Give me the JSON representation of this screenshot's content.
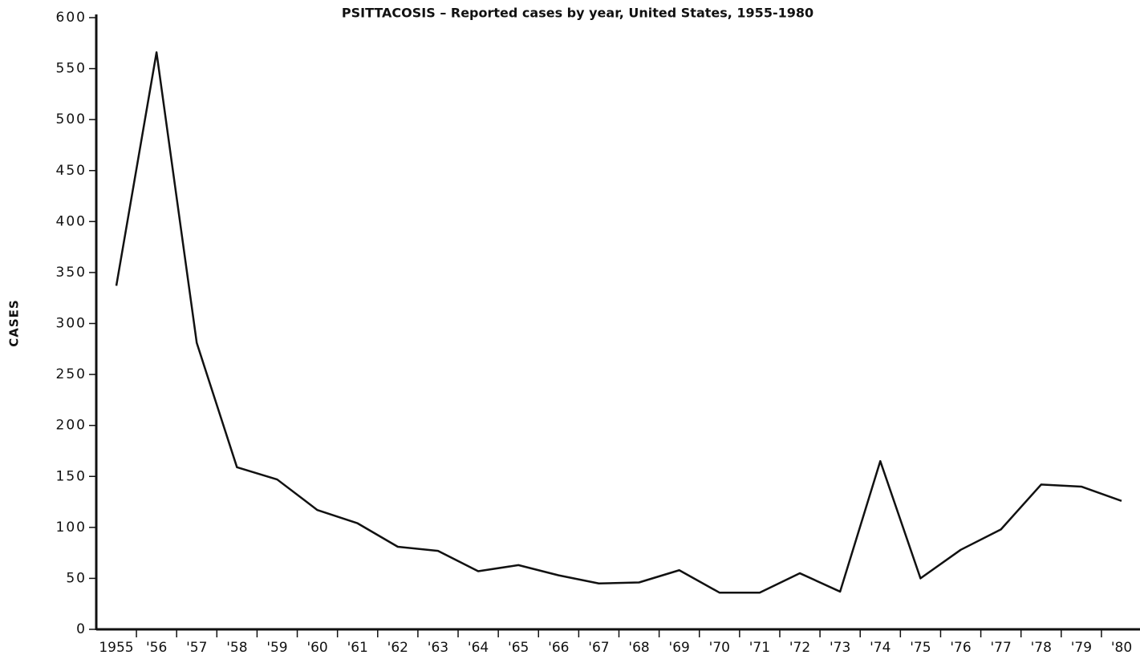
{
  "chart_data": {
    "type": "line",
    "title": "PSITTACOSIS – Reported cases by year, United States, 1955-1980",
    "y_label": "CASES",
    "categories": [
      "1955",
      "'56",
      "'57",
      "'58",
      "'59",
      "'60",
      "'61",
      "'62",
      "'63",
      "'64",
      "'65",
      "'66",
      "'67",
      "'68",
      "'69",
      "'70",
      "'71",
      "'72",
      "'73",
      "'74",
      "'75",
      "'76",
      "'77",
      "'78",
      "'79",
      "'80"
    ],
    "series": [
      {
        "name": "Reported cases",
        "color": "#111111",
        "values": [
          337,
          566,
          281,
          159,
          147,
          117,
          104,
          81,
          77,
          57,
          63,
          53,
          45,
          46,
          58,
          36,
          36,
          55,
          37,
          165,
          50,
          78,
          98,
          142,
          140,
          126
        ]
      }
    ],
    "ylim": [
      0,
      600
    ],
    "yticks": [
      0,
      50,
      100,
      150,
      200,
      250,
      300,
      350,
      400,
      450,
      500,
      550,
      600
    ],
    "grid": false
  }
}
